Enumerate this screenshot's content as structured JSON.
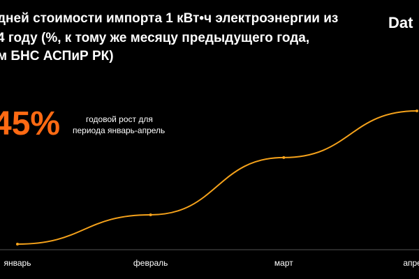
{
  "header": {
    "title_lines": [
      "дней стоимости импорта 1 кВт•ч электроэнергии из",
      "4 году (%, к тому же месяцу предыдущего года,",
      "м БНС АСПиР РК)"
    ],
    "brand": "Dat"
  },
  "highlight": {
    "value": "45%",
    "note_lines": [
      "годовой рост для",
      "периода январь-апрель"
    ]
  },
  "colors": {
    "line": "#f5a21b",
    "highlight": "#ff6a13",
    "axis": "#555555",
    "background": "#000000"
  },
  "chart_data": {
    "type": "line",
    "categories": [
      "январь",
      "февраль",
      "март",
      "апрель"
    ],
    "values": [
      0,
      22,
      65,
      100
    ],
    "title": "",
    "xlabel": "",
    "ylabel": "",
    "ylim": [
      0,
      100
    ],
    "grid": false,
    "legend": "none"
  }
}
